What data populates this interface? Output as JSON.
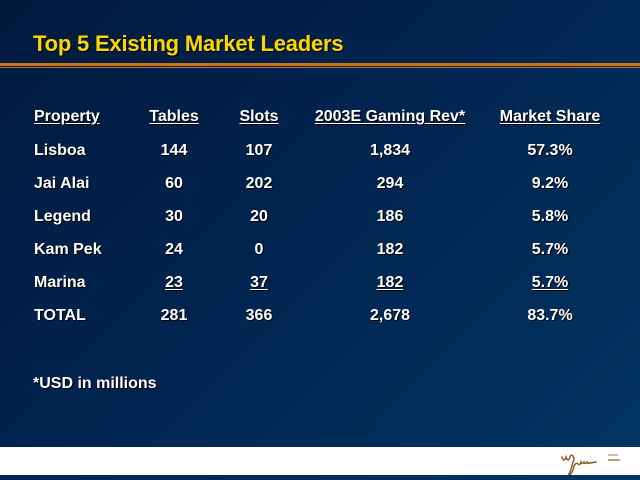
{
  "title": "Top 5 Existing Market Leaders",
  "table": {
    "headers": [
      "Property",
      "Tables",
      "Slots",
      "2003E Gaming Rev*",
      "Market Share"
    ],
    "rows": [
      [
        "Lisboa",
        "144",
        "107",
        "1,834",
        "57.3%"
      ],
      [
        "Jai Alai",
        "60",
        "202",
        "294",
        "9.2%"
      ],
      [
        "Legend",
        "30",
        "20",
        "186",
        "5.8%"
      ],
      [
        "Kam Pek",
        "24",
        "0",
        "182",
        "5.7%"
      ],
      [
        "Marina",
        "23",
        "37",
        "182",
        "5.7%"
      ],
      [
        "TOTAL",
        "281",
        "366",
        "2,678",
        "83.7%"
      ]
    ]
  },
  "footnote": "*USD in millions",
  "logo": "Wynn",
  "colors": {
    "title": "#ffd700",
    "rule": "#c8731a",
    "logo": "#8b5a1e"
  }
}
